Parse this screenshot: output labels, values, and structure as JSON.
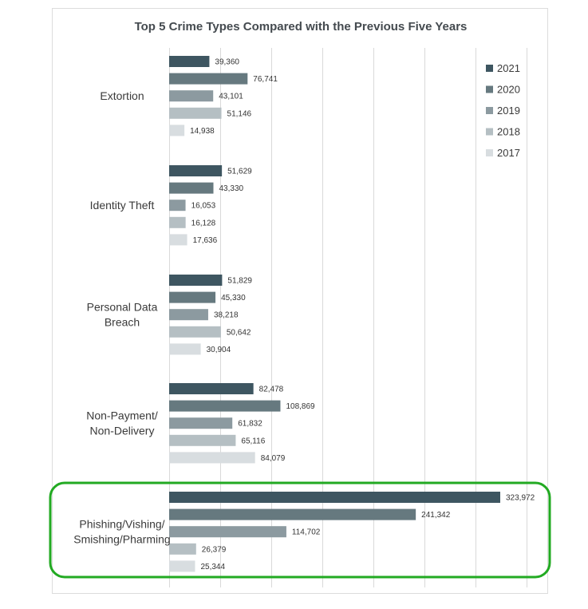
{
  "chart_data": {
    "type": "bar",
    "orientation": "horizontal",
    "title": "Top 5 Crime Types Compared with the Previous Five Years",
    "categories": [
      [
        "Extortion"
      ],
      [
        "Identity Theft"
      ],
      [
        "Personal Data",
        "Breach"
      ],
      [
        "Non-Payment/",
        "Non-Delivery"
      ],
      [
        "Phishing/Vishing/",
        "Smishing/Pharming"
      ]
    ],
    "series": [
      {
        "name": "2021",
        "color": "#3e5661",
        "values": [
          39360,
          51629,
          51829,
          82478,
          323972
        ],
        "labels": [
          "39,360",
          "51,629",
          "51,829",
          "82,478",
          "323,972"
        ]
      },
      {
        "name": "2020",
        "color": "#66797f",
        "values": [
          76741,
          43330,
          45330,
          108869,
          241342
        ],
        "labels": [
          "76,741",
          "43,330",
          "45,330",
          "108,869",
          "241,342"
        ]
      },
      {
        "name": "2019",
        "color": "#8c9aa0",
        "values": [
          43101,
          16053,
          38218,
          61832,
          114702
        ],
        "labels": [
          "43,101",
          "16,053",
          "38,218",
          "61,832",
          "114,702"
        ]
      },
      {
        "name": "2018",
        "color": "#b5bfc3",
        "values": [
          51146,
          16128,
          50642,
          65116,
          26379
        ],
        "labels": [
          "51,146",
          "16,128",
          "50,642",
          "65,116",
          "26,379"
        ]
      },
      {
        "name": "2017",
        "color": "#d8dde0",
        "values": [
          14938,
          17636,
          30904,
          84079,
          25344
        ],
        "labels": [
          "14,938",
          "17,636",
          "30,904",
          "84,079",
          "25,344"
        ]
      }
    ],
    "xlim": [
      0,
      350000
    ],
    "x_gridline_step": 50000,
    "grid": true,
    "legend_position": "top-right",
    "highlight": {
      "category": [
        "Phishing/Vishing/",
        "Smishing/Pharming"
      ],
      "color": "#22aa22"
    }
  }
}
